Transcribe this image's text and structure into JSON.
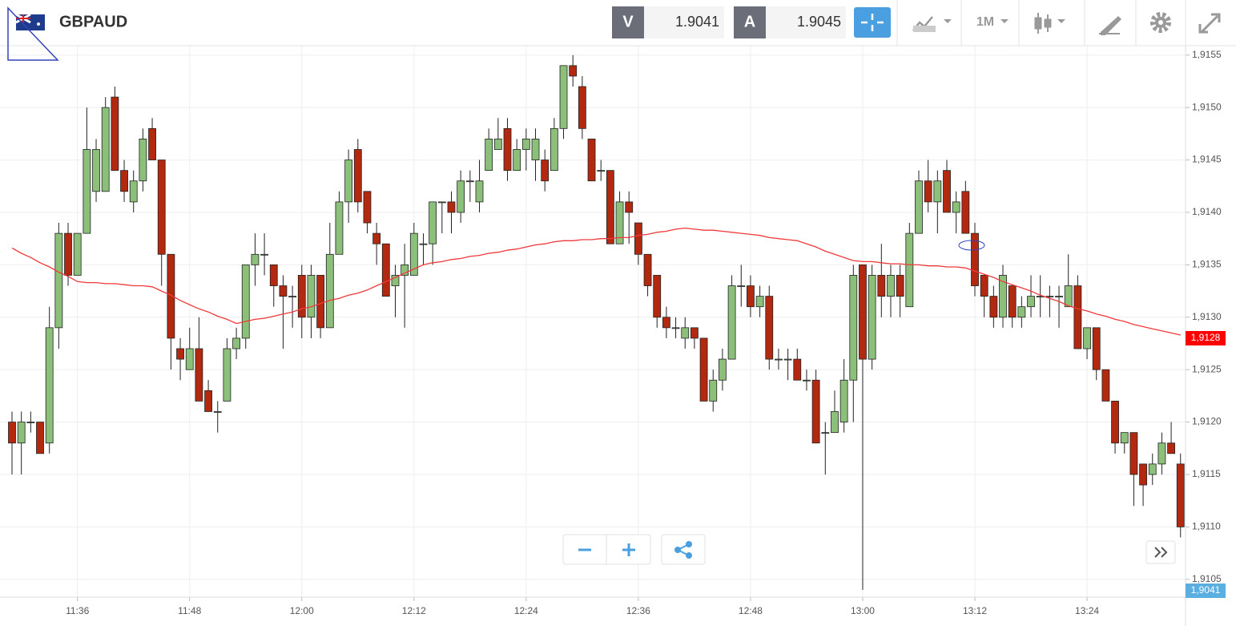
{
  "header": {
    "symbol": "GBPAUD",
    "bid_label": "V",
    "bid": 1.9041,
    "ask_label": "A",
    "ask": 1.9045,
    "timeframe": "1M"
  },
  "chart_data": {
    "type": "candlestick",
    "categories": [
      null,
      null,
      null,
      null,
      null,
      null,
      null,
      "11:36",
      null,
      null,
      null,
      null,
      null,
      null,
      null,
      null,
      null,
      null,
      null,
      "11:48",
      null,
      null,
      null,
      null,
      null,
      null,
      null,
      null,
      null,
      null,
      null,
      "12:00",
      null,
      null,
      null,
      null,
      null,
      null,
      null,
      null,
      null,
      null,
      null,
      "12:12",
      null,
      null,
      null,
      null,
      null,
      null,
      null,
      null,
      null,
      null,
      null,
      "12:24",
      null,
      null,
      null,
      null,
      null,
      null,
      null,
      null,
      null,
      null,
      null,
      "12:36",
      null,
      null,
      null,
      null,
      null,
      null,
      null,
      null,
      null,
      null,
      null,
      "12:48",
      null,
      null,
      null,
      null,
      null,
      null,
      null,
      null,
      null,
      null,
      null,
      "13:00",
      null,
      null,
      null,
      null,
      null,
      null,
      null,
      null,
      null,
      null,
      null,
      "13:12",
      null,
      null,
      null,
      null,
      null,
      null,
      null,
      null,
      null,
      null,
      null,
      "13:24",
      null,
      null,
      null,
      null,
      null,
      null,
      null,
      null,
      null,
      null
    ],
    "open": [
      1.912,
      1.9118,
      1.912,
      1.912,
      1.9118,
      1.9129,
      1.9138,
      1.9134,
      1.9138,
      1.9142,
      1.9142,
      1.9151,
      1.9144,
      1.9141,
      1.9143,
      1.9148,
      1.9145,
      1.9136,
      1.9127,
      1.9125,
      1.9127,
      1.9123,
      1.9121,
      1.9122,
      1.9127,
      1.9128,
      1.9135,
      1.9136,
      1.9135,
      1.9133,
      1.9132,
      1.9134,
      1.913,
      1.9134,
      1.9129,
      1.9136,
      1.9141,
      1.9146,
      1.9142,
      1.9138,
      1.9137,
      1.9133,
      1.9134,
      1.9134,
      1.9137,
      1.9137,
      1.9141,
      1.9141,
      1.914,
      1.9143,
      1.9141,
      1.9144,
      1.9146,
      1.9148,
      1.9144,
      1.9146,
      1.9145,
      1.9145,
      1.9144,
      1.9148,
      1.9154,
      1.9152,
      1.9147,
      1.9144,
      1.9144,
      1.9137,
      1.9141,
      1.9139,
      1.9136,
      1.9134,
      1.913,
      1.9129,
      1.9128,
      1.9129,
      1.9128,
      1.9122,
      1.9124,
      1.9126,
      1.9133,
      1.9133,
      1.9131,
      1.9132,
      1.9126,
      1.9126,
      1.9126,
      1.9124,
      1.9124,
      1.9119,
      1.9119,
      1.912,
      1.9124,
      1.9135,
      1.9126,
      1.9134,
      1.9132,
      1.9134,
      1.9131,
      1.9138,
      1.9143,
      1.9141,
      1.9144,
      1.914,
      1.9142,
      1.9138,
      1.9134,
      1.9132,
      1.913,
      1.9133,
      1.913,
      1.9131,
      1.9132,
      1.9132,
      1.9132,
      1.9131,
      1.9133,
      1.9127,
      1.9129,
      1.9125,
      1.9122,
      1.9118,
      1.9119,
      1.9116,
      1.9115,
      1.9116,
      1.9118,
      1.9116
    ],
    "high": [
      1.9121,
      1.9121,
      1.9121,
      1.912,
      1.9131,
      1.9139,
      1.9139,
      1.9138,
      1.915,
      1.9147,
      1.9151,
      1.9152,
      1.9145,
      1.9144,
      1.9148,
      1.9149,
      1.9145,
      1.9136,
      1.9128,
      1.9129,
      1.913,
      1.9124,
      1.9122,
      1.9128,
      1.9129,
      1.9135,
      1.9138,
      1.9138,
      1.9135,
      1.9134,
      1.9133,
      1.9135,
      1.9135,
      1.9134,
      1.9139,
      1.9142,
      1.9146,
      1.9147,
      1.9142,
      1.9139,
      1.9137,
      1.9135,
      1.9137,
      1.9139,
      1.9138,
      1.9141,
      1.9141,
      1.9142,
      1.9144,
      1.9144,
      1.9145,
      1.9148,
      1.9149,
      1.9149,
      1.9147,
      1.9148,
      1.9148,
      1.9146,
      1.9149,
      1.9154,
      1.9155,
      1.9153,
      1.9147,
      1.9145,
      1.9144,
      1.9142,
      1.9142,
      1.9139,
      1.9136,
      1.9134,
      1.9131,
      1.913,
      1.913,
      1.9129,
      1.9128,
      1.9125,
      1.9127,
      1.9134,
      1.9135,
      1.9134,
      1.9133,
      1.9133,
      1.9127,
      1.9127,
      1.9127,
      1.9125,
      1.9125,
      1.912,
      1.9123,
      1.9126,
      1.9135,
      1.9135,
      1.9135,
      1.9137,
      1.9135,
      1.9135,
      1.9139,
      1.9144,
      1.9145,
      1.9144,
      1.9145,
      1.9142,
      1.9143,
      1.9139,
      1.9134,
      1.9133,
      1.9135,
      1.9133,
      1.9132,
      1.9134,
      1.9134,
      1.9133,
      1.9133,
      1.9136,
      1.9134,
      1.9129,
      1.9129,
      1.9125,
      1.9122,
      1.9119,
      1.9119,
      1.9116,
      1.9117,
      1.9119,
      1.912,
      1.9117
    ],
    "low": [
      1.9115,
      1.9115,
      1.9119,
      1.9117,
      1.9117,
      1.9127,
      1.9133,
      1.9134,
      1.9138,
      1.9141,
      1.9142,
      1.9144,
      1.9141,
      1.914,
      1.9142,
      1.9145,
      1.9133,
      1.9125,
      1.9124,
      1.9125,
      1.9122,
      1.9121,
      1.9119,
      1.9122,
      1.9126,
      1.9127,
      1.9133,
      1.9134,
      1.9131,
      1.9127,
      1.9129,
      1.9128,
      1.9128,
      1.9128,
      1.9129,
      1.9136,
      1.9139,
      1.914,
      1.9138,
      1.9135,
      1.9132,
      1.913,
      1.9129,
      1.9134,
      1.9135,
      1.9135,
      1.9138,
      1.9138,
      1.9139,
      1.9141,
      1.914,
      1.9144,
      1.9146,
      1.9143,
      1.9144,
      1.9144,
      1.9143,
      1.9142,
      1.9144,
      1.9147,
      1.9152,
      1.9147,
      1.9143,
      1.9143,
      1.9137,
      1.9137,
      1.9137,
      1.9135,
      1.9132,
      1.9129,
      1.9128,
      1.9128,
      1.9127,
      1.9127,
      1.9122,
      1.9121,
      1.9123,
      1.9126,
      1.9131,
      1.913,
      1.913,
      1.9125,
      1.9125,
      1.9124,
      1.9124,
      1.9123,
      1.9118,
      1.9115,
      1.9119,
      1.9119,
      1.912,
      1.9104,
      1.9125,
      1.913,
      1.913,
      1.913,
      1.9131,
      1.9138,
      1.914,
      1.9138,
      1.914,
      1.9138,
      1.9138,
      1.9132,
      1.913,
      1.9129,
      1.9129,
      1.9129,
      1.9129,
      1.913,
      1.913,
      1.913,
      1.9129,
      1.9131,
      1.9127,
      1.9126,
      1.9124,
      1.9122,
      1.9117,
      1.9117,
      1.9112,
      1.9112,
      1.9114,
      1.9115,
      1.9117,
      1.9109
    ],
    "close": [
      1.9118,
      1.912,
      1.912,
      1.9117,
      1.9129,
      1.9138,
      1.9134,
      1.9138,
      1.9146,
      1.9146,
      1.915,
      1.9144,
      1.9142,
      1.9143,
      1.9147,
      1.9145,
      1.9136,
      1.9128,
      1.9126,
      1.9127,
      1.9122,
      1.9121,
      1.9121,
      1.9127,
      1.9128,
      1.9135,
      1.9136,
      1.9136,
      1.9133,
      1.9132,
      1.9132,
      1.913,
      1.9134,
      1.9129,
      1.9136,
      1.9141,
      1.9145,
      1.9141,
      1.9139,
      1.9137,
      1.9132,
      1.9134,
      1.9135,
      1.9138,
      1.9137,
      1.9141,
      1.9141,
      1.914,
      1.9143,
      1.9143,
      1.9143,
      1.9147,
      1.9147,
      1.9144,
      1.9146,
      1.9147,
      1.9147,
      1.9143,
      1.9148,
      1.9154,
      1.9153,
      1.9148,
      1.9143,
      1.9144,
      1.9137,
      1.9141,
      1.914,
      1.9136,
      1.9133,
      1.913,
      1.9129,
      1.9129,
      1.9129,
      1.9128,
      1.9122,
      1.9124,
      1.9126,
      1.9133,
      1.9133,
      1.9131,
      1.9132,
      1.9126,
      1.9126,
      1.9126,
      1.9124,
      1.9124,
      1.9118,
      1.9119,
      1.9121,
      1.9124,
      1.9134,
      1.9126,
      1.9134,
      1.9132,
      1.9134,
      1.9132,
      1.9138,
      1.9143,
      1.9141,
      1.9143,
      1.914,
      1.9141,
      1.9138,
      1.9133,
      1.9132,
      1.913,
      1.9134,
      1.913,
      1.9131,
      1.9132,
      1.9132,
      1.9132,
      1.9132,
      1.9133,
      1.9127,
      1.9129,
      1.9125,
      1.9122,
      1.9118,
      1.9119,
      1.9115,
      1.9114,
      1.9116,
      1.9118,
      1.9117,
      1.911
    ],
    "up_color": "#8cc07a",
    "down_color": "#b3290f",
    "ma": {
      "color": "#f0393b",
      "values": [
        1.91366,
        1.91361,
        1.91357,
        1.91352,
        1.91348,
        1.91343,
        1.91339,
        1.91334,
        1.91333,
        1.91333,
        1.91332,
        1.91332,
        1.91331,
        1.9133,
        1.9133,
        1.91329,
        1.91325,
        1.91321,
        1.91316,
        1.91312,
        1.91308,
        1.91305,
        1.91301,
        1.91298,
        1.91294,
        1.91296,
        1.91298,
        1.91299,
        1.91301,
        1.91303,
        1.91305,
        1.91308,
        1.9131,
        1.91313,
        1.91316,
        1.91318,
        1.91321,
        1.91323,
        1.91326,
        1.9133,
        1.91334,
        1.91338,
        1.91342,
        1.91346,
        1.9135,
        1.91352,
        1.91353,
        1.91355,
        1.91356,
        1.91358,
        1.91359,
        1.91361,
        1.91362,
        1.91364,
        1.91365,
        1.91367,
        1.91369,
        1.9137,
        1.91372,
        1.91373,
        1.91373,
        1.91374,
        1.91374,
        1.91375,
        1.91375,
        1.91376,
        1.91376,
        1.91378,
        1.91379,
        1.91381,
        1.91382,
        1.91384,
        1.91385,
        1.91384,
        1.91383,
        1.91383,
        1.91382,
        1.91381,
        1.9138,
        1.91379,
        1.91378,
        1.91376,
        1.91375,
        1.91374,
        1.91373,
        1.9137,
        1.91367,
        1.91363,
        1.9136,
        1.91357,
        1.91354,
        1.91353,
        1.91353,
        1.91352,
        1.91351,
        1.91351,
        1.9135,
        1.9135,
        1.91349,
        1.91349,
        1.91348,
        1.91348,
        1.91347,
        1.91344,
        1.91341,
        1.91338,
        1.91334,
        1.91331,
        1.91328,
        1.91325,
        1.91321,
        1.91318,
        1.91315,
        1.91311,
        1.91308,
        1.91306,
        1.91303,
        1.91301,
        1.91298,
        1.91296,
        1.91293,
        1.91291,
        1.91289,
        1.91287,
        1.91285,
        1.91283
      ]
    },
    "ylim": [
      1.91033,
      1.91559
    ],
    "yticks": [
      {
        "value": 1.9105,
        "label": "1,9105"
      },
      {
        "value": 1.911,
        "label": "1,9110"
      },
      {
        "value": 1.9115,
        "label": "1,9115"
      },
      {
        "value": 1.912,
        "label": "1,9120"
      },
      {
        "value": 1.9125,
        "label": "1,9125"
      },
      {
        "value": 1.913,
        "label": "1,9130"
      },
      {
        "value": 1.9135,
        "label": "1,9135"
      },
      {
        "value": 1.914,
        "label": "1,9140"
      },
      {
        "value": 1.9145,
        "label": "1,9145"
      },
      {
        "value": 1.915,
        "label": "1,9150"
      },
      {
        "value": 1.9155,
        "label": "1,9155"
      }
    ],
    "grid": true,
    "price_tags": [
      {
        "label": "1,9128",
        "color": "#ff0000"
      },
      {
        "label": "1,9041",
        "color": "#5aaee0"
      }
    ]
  }
}
